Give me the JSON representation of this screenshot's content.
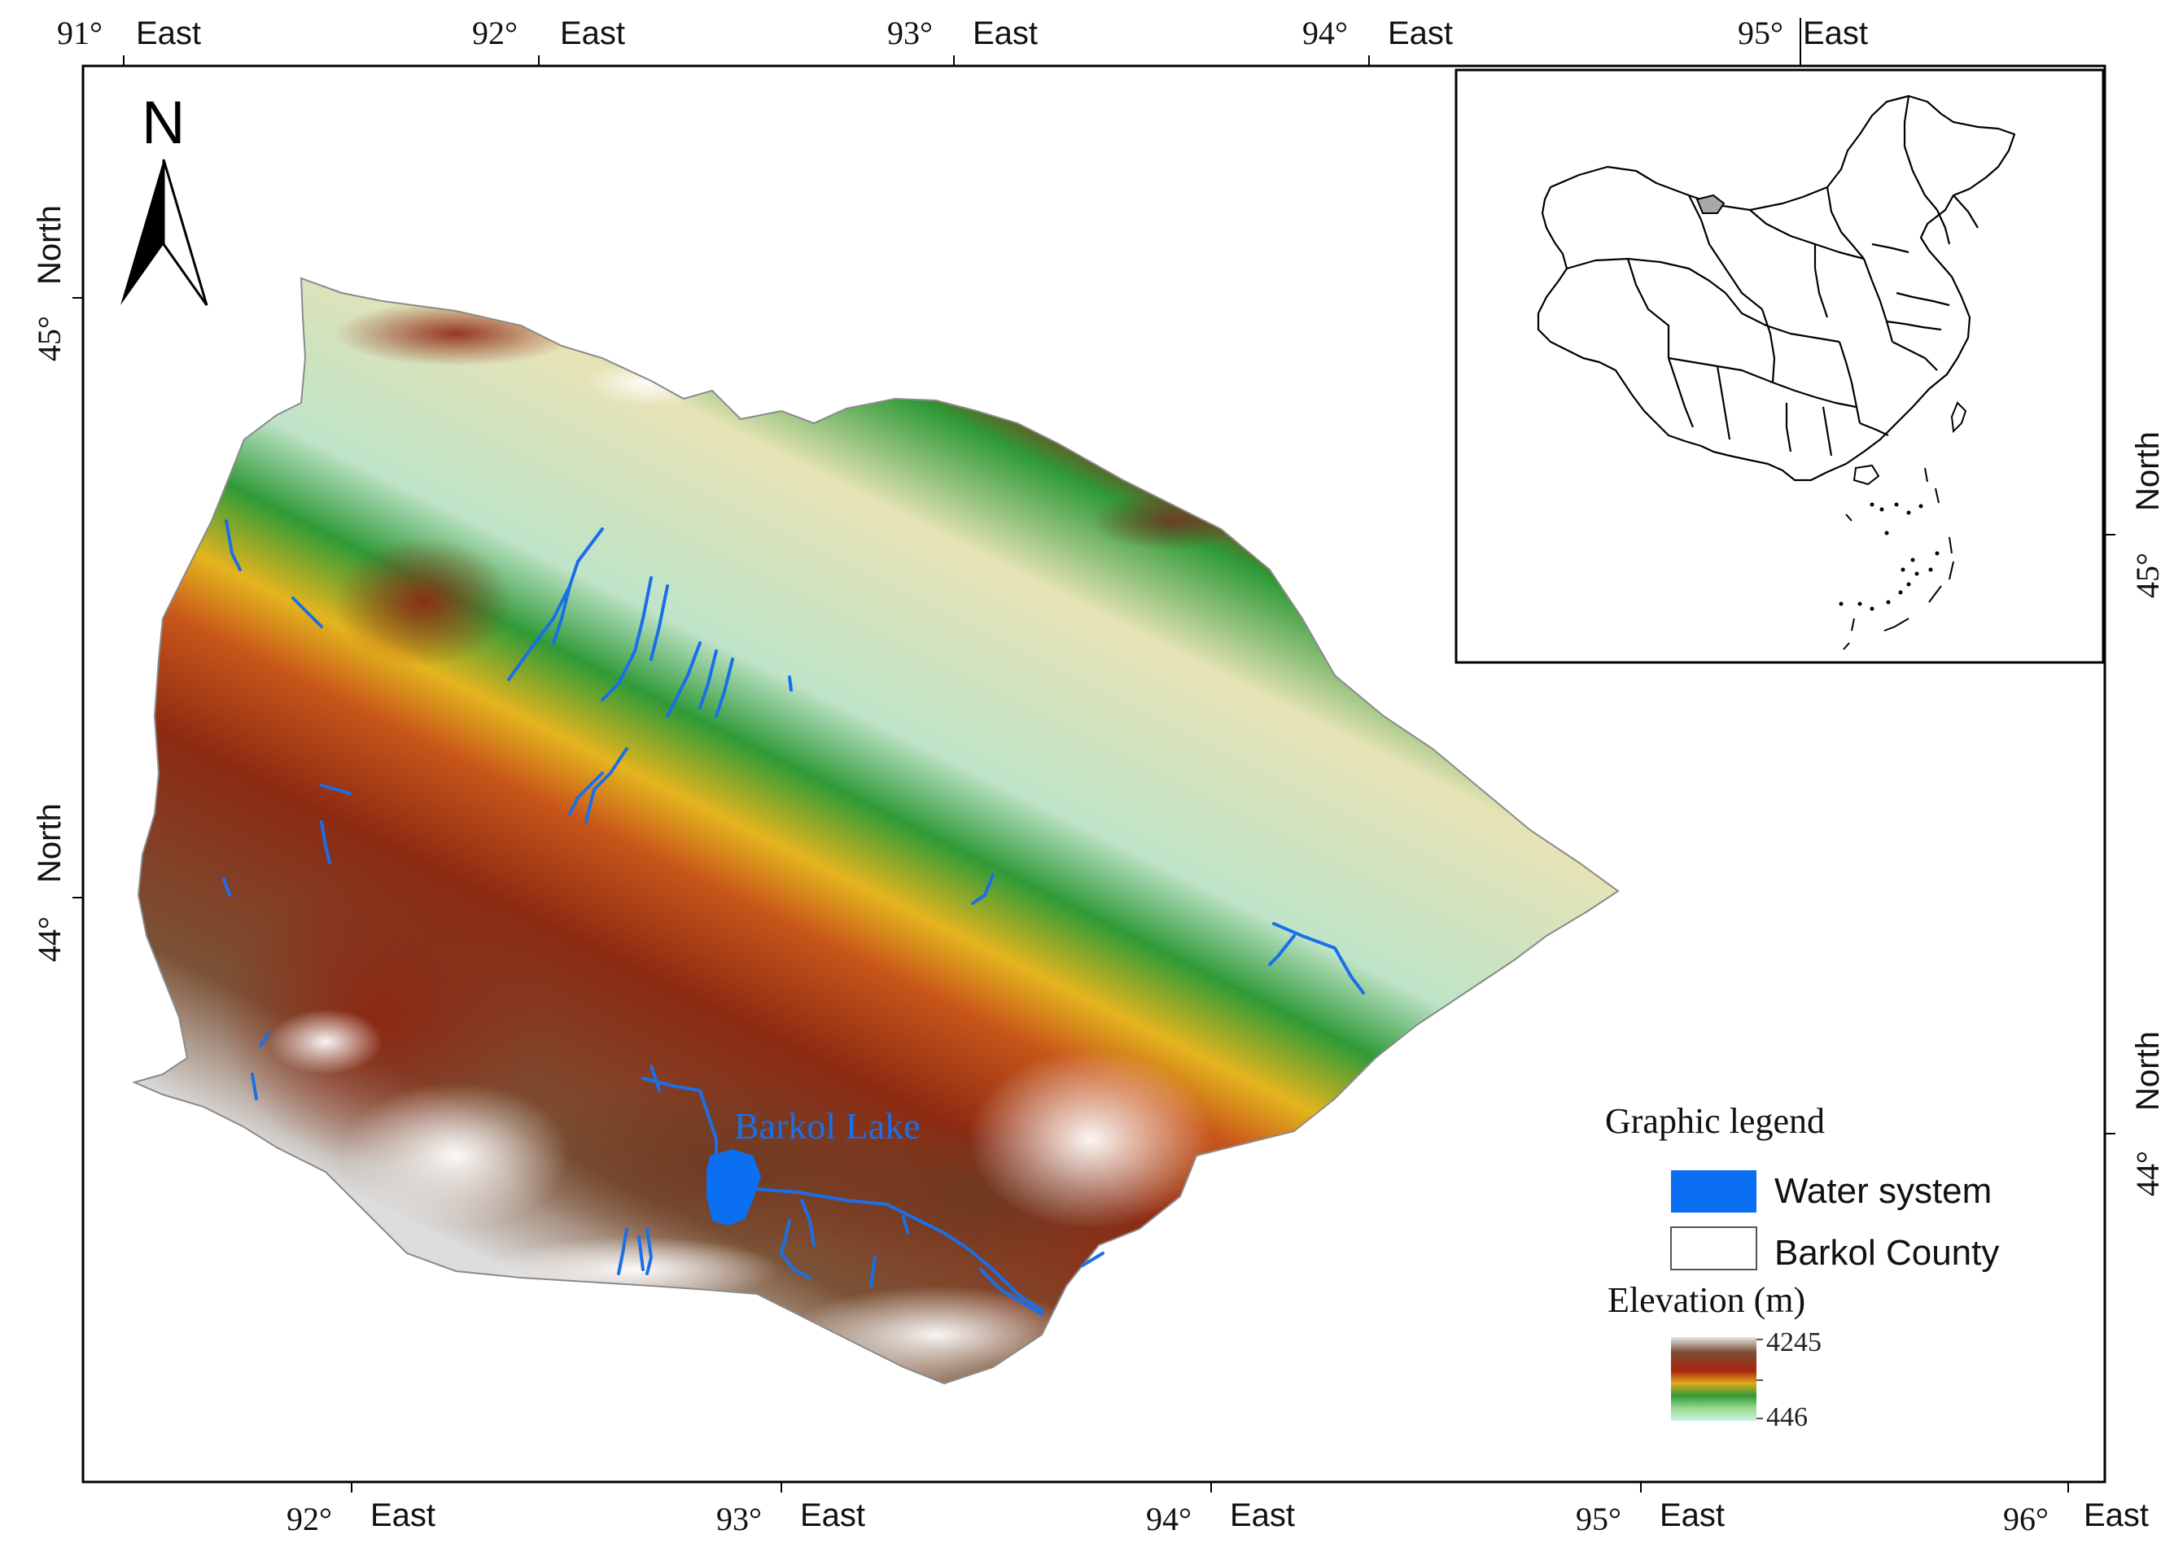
{
  "map": {
    "north_label": "N",
    "lake_label": "Barkol Lake",
    "colors": {
      "water": "#0a6ff0",
      "frame": "#000000",
      "high": "#7a4a2e",
      "mid": "#b02a12",
      "low": "#2f9e3a",
      "lowest": "#bdf0e0"
    }
  },
  "axes": {
    "top": [
      {
        "deg": "91°",
        "dir": "East"
      },
      {
        "deg": "92°",
        "dir": "East"
      },
      {
        "deg": "93°",
        "dir": "East"
      },
      {
        "deg": "94°",
        "dir": "East"
      },
      {
        "deg": "95°",
        "dir": "East"
      }
    ],
    "bottom": [
      {
        "deg": "92°",
        "dir": "East"
      },
      {
        "deg": "93°",
        "dir": "East"
      },
      {
        "deg": "94°",
        "dir": "East"
      },
      {
        "deg": "95°",
        "dir": "East"
      },
      {
        "deg": "96°",
        "dir": "East"
      }
    ],
    "left": [
      {
        "deg": "45°",
        "dir": "North"
      },
      {
        "deg": "44°",
        "dir": "North"
      }
    ],
    "right": [
      {
        "deg": "45°",
        "dir": "North"
      },
      {
        "deg": "44°",
        "dir": "North"
      }
    ]
  },
  "legend": {
    "title": "Graphic legend",
    "water_label": "Water system",
    "county_label": "Barkol County",
    "elevation_title": "Elevation (m)",
    "elevation_max": "4245",
    "elevation_min": "446"
  }
}
